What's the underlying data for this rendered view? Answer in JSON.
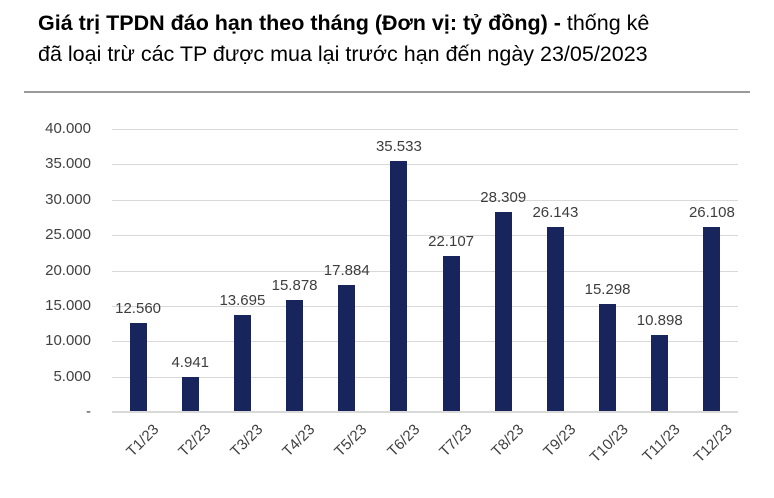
{
  "title": {
    "line1_bold": "Giá trị TPDN đáo hạn theo tháng (Đơn vị: tỷ đồng) -",
    "line1_regular": " thống kê",
    "line2": "đã loại trừ các TP được mua lại trước hạn đến ngày 23/05/2023"
  },
  "chart_data": {
    "type": "bar",
    "title": "Giá trị TPDN đáo hạn theo tháng",
    "unit_label": "tỷ đồng",
    "as_of_date": "23/05/2023",
    "categories": [
      "T1/23",
      "T2/23",
      "T3/23",
      "T4/23",
      "T5/23",
      "T6/23",
      "T7/23",
      "T8/23",
      "T9/23",
      "T10/23",
      "T11/23",
      "T12/23"
    ],
    "values": [
      12560,
      4941,
      13695,
      15878,
      17884,
      35533,
      22107,
      28309,
      26143,
      15298,
      10898,
      26108
    ],
    "value_labels": [
      "12.560",
      "4.941",
      "13.695",
      "15.878",
      "17.884",
      "35.533",
      "22.107",
      "28.309",
      "26.143",
      "15.298",
      "10.898",
      "26.108"
    ],
    "y_ticks": {
      "labels": [
        "40.000",
        "35.000",
        "30.000",
        "25.000",
        "20.000",
        "15.000",
        "10.000",
        "5.000",
        "-"
      ],
      "values": [
        40000,
        35000,
        30000,
        25000,
        20000,
        15000,
        10000,
        5000,
        0
      ]
    },
    "ylim": [
      0,
      40000
    ],
    "xlabel": "",
    "ylabel": "",
    "grid": true,
    "legend": false,
    "colors": {
      "bar": "#18255c",
      "gridline": "#d9d9d9",
      "axis_text": "#404040",
      "value_label_text": "#3d3d3d",
      "title_text": "#000000",
      "separator": "#9a9a9a"
    }
  }
}
